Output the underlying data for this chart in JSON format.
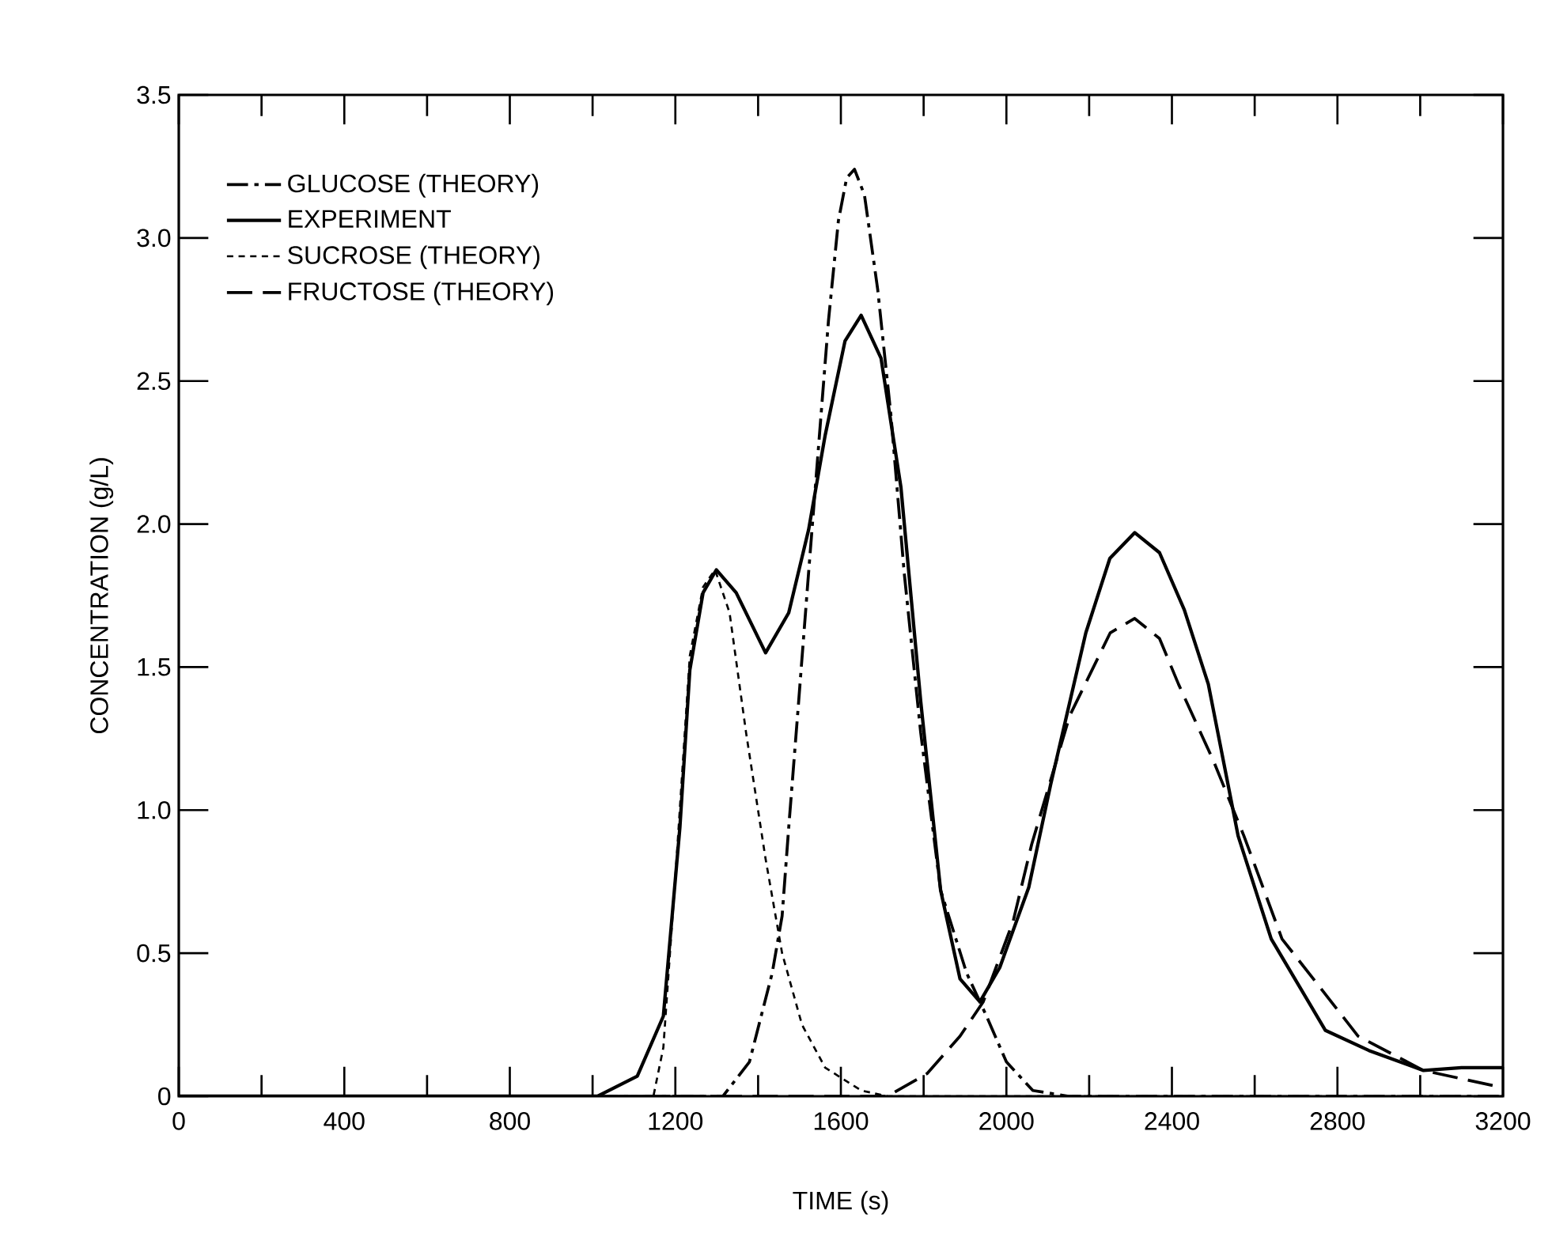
{
  "chart_data": {
    "type": "line",
    "xlabel": "TIME (s)",
    "ylabel": "CONCENTRATION (g/L)",
    "xlim": [
      0,
      3200
    ],
    "ylim": [
      0,
      3.5
    ],
    "xticks": [
      0,
      {
        "value": 200,
        "label": null
      },
      400,
      {
        "value": 600,
        "label": null
      },
      800,
      {
        "value": 1000,
        "label": null
      },
      1200,
      {
        "value": 1400,
        "label": null
      },
      1600,
      {
        "value": 1800,
        "label": null
      },
      2000,
      {
        "value": 2200,
        "label": null
      },
      2400,
      {
        "value": 2600,
        "label": null
      },
      2800,
      {
        "value": 3000,
        "label": null
      },
      3200
    ],
    "yticks": [
      0,
      0.5,
      {
        "value": 1,
        "label": "1.0"
      },
      1.5,
      {
        "value": 2,
        "label": "2.0"
      },
      2.5,
      {
        "value": 3,
        "label": "3.0"
      },
      3.5
    ],
    "grid": false,
    "legend": "top left",
    "series": [
      {
        "name": "GLUCOSE (THEORY)",
        "color": "#000000",
        "line_style": "dashdot",
        "x": [
          0,
          1315,
          1379,
          1434,
          1458,
          1474,
          1498,
          1522,
          1546,
          1570,
          1594,
          1614,
          1633,
          1657,
          1689,
          1721,
          1753,
          1793,
          1841,
          1904,
          1952,
          2000,
          2064,
          2150,
          3200
        ],
        "values": [
          0,
          0,
          0.12,
          0.43,
          0.63,
          0.94,
          1.38,
          1.83,
          2.27,
          2.71,
          3.06,
          3.21,
          3.24,
          3.15,
          2.82,
          2.38,
          1.83,
          1.27,
          0.72,
          0.43,
          0.28,
          0.12,
          0.02,
          0,
          0
        ]
      },
      {
        "name": "EXPERIMENT",
        "color": "#000000",
        "line_style": "solid",
        "x": [
          0,
          1012,
          1108,
          1171,
          1211,
          1235,
          1267,
          1299,
          1347,
          1418,
          1474,
          1522,
          1562,
          1610,
          1649,
          1697,
          1745,
          1793,
          1841,
          1888,
          1936,
          1984,
          2054,
          2107,
          2192,
          2250,
          2310,
          2370,
          2430,
          2488,
          2560,
          2640,
          2771,
          2876,
          3008,
          3100,
          3200
        ],
        "values": [
          0,
          0,
          0.07,
          0.28,
          0.94,
          1.49,
          1.76,
          1.84,
          1.76,
          1.55,
          1.69,
          1.98,
          2.31,
          2.64,
          2.73,
          2.58,
          2.13,
          1.38,
          0.72,
          0.41,
          0.33,
          0.45,
          0.73,
          1.09,
          1.62,
          1.88,
          1.97,
          1.9,
          1.7,
          1.44,
          0.91,
          0.55,
          0.23,
          0.16,
          0.09,
          0.1,
          0.1
        ]
      },
      {
        "name": "SUCROSE (THEORY)",
        "color": "#000000",
        "line_style": "dotted",
        "x": [
          0,
          1147,
          1171,
          1203,
          1235,
          1267,
          1296,
          1331,
          1371,
          1418,
          1458,
          1506,
          1562,
          1649,
          1713,
          3200
        ],
        "values": [
          0,
          0,
          0.17,
          0.83,
          1.54,
          1.78,
          1.84,
          1.69,
          1.27,
          0.83,
          0.5,
          0.25,
          0.1,
          0.02,
          0,
          0
        ]
      },
      {
        "name": "FRUCTOSE (THEORY)",
        "color": "#000000",
        "line_style": "dashed",
        "x": [
          0,
          1713,
          1809,
          1888,
          1944,
          2016,
          2061,
          2153,
          2251,
          2310,
          2370,
          2416,
          2501,
          2574,
          2666,
          2850,
          3008,
          3200
        ],
        "values": [
          0,
          0,
          0.08,
          0.21,
          0.33,
          0.61,
          0.88,
          1.33,
          1.62,
          1.67,
          1.6,
          1.44,
          1.17,
          0.91,
          0.55,
          0.21,
          0.09,
          0.03
        ]
      }
    ]
  }
}
